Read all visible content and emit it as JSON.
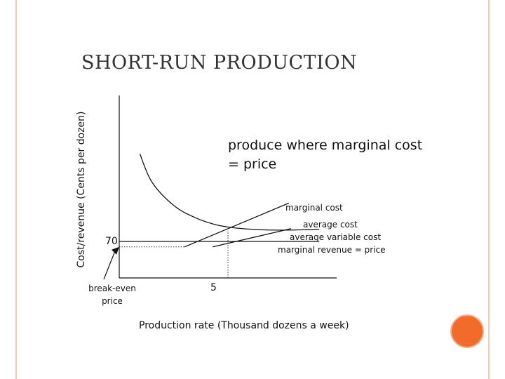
{
  "slide": {
    "title": "SHORT-RUN PRODUCTION",
    "accent_color": "#f26b2a",
    "border_color": "#f3c9b8"
  },
  "chart_data": {
    "type": "line",
    "title": "SHORT-RUN PRODUCTION",
    "xlabel": "Production rate (Thousand dozens a week)",
    "ylabel": "Cost/revenue (Cents per dozen)",
    "xlim": [
      0,
      10
    ],
    "ylim": [
      60,
      110
    ],
    "grid": false,
    "x_ticks": [
      5
    ],
    "x_tick_labels": [
      "5"
    ],
    "y_ticks": [
      70
    ],
    "y_tick_labels": [
      "70"
    ],
    "series": [
      {
        "name": "average cost",
        "x": [
          0.95,
          1.5,
          2.5,
          3.5,
          4.5,
          5.5,
          6.5,
          7.5,
          8.5,
          9.2
        ],
        "y": [
          94,
          86.3,
          79.9,
          76.5,
          74.5,
          73.6,
          73.2,
          73.1,
          73.2,
          73.3
        ]
      },
      {
        "name": "marginal cost",
        "x": [
          3.0,
          7.8
        ],
        "y": [
          68.5,
          80.5
        ]
      },
      {
        "name": "average variable cost",
        "x": [
          4.3,
          7.9
        ],
        "y": [
          68.5,
          73.5
        ]
      },
      {
        "name": "marginal revenue = price",
        "x": [
          0,
          9.2
        ],
        "y": [
          70,
          70
        ]
      }
    ],
    "reference_lines": [
      {
        "orientation": "vertical",
        "x": 5,
        "y_from": 60,
        "y_to": 72.9,
        "style": "dotted"
      },
      {
        "orientation": "horizontal",
        "y": 68.5,
        "x_from": 0,
        "x_to": 3.0,
        "style": "dotted"
      }
    ],
    "annotations": {
      "main": "produce where marginal cost = price",
      "marginal_cost": "marginal cost",
      "average_cost": "average cost",
      "average_variable_cost": "average variable cost",
      "marginal_revenue": "marginal revenue = price",
      "break_even": "break-even price"
    }
  }
}
